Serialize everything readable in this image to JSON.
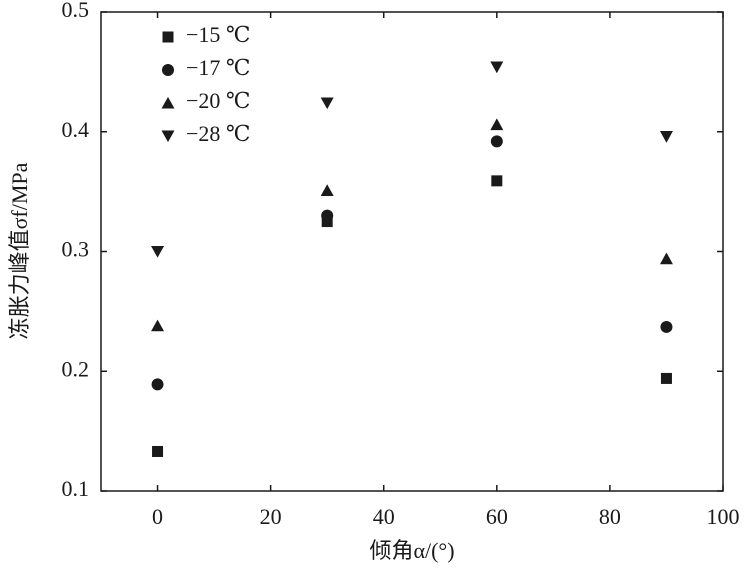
{
  "chart_data": {
    "type": "scatter",
    "x_label": "倾角α/(°)",
    "y_label": "冻胀力峰值σf/MPa",
    "x": [
      0,
      30,
      60,
      90
    ],
    "series": [
      {
        "name": "−15 ℃",
        "color": "#1a1a1a",
        "marker": "square",
        "values": [
          0.133,
          0.325,
          0.359,
          0.194
        ]
      },
      {
        "name": "−17 ℃",
        "color": "#1a1a1a",
        "marker": "circle",
        "values": [
          0.189,
          0.33,
          0.392,
          0.237
        ]
      },
      {
        "name": "−20 ℃",
        "color": "#1a1a1a",
        "marker": "triangle-up",
        "values": [
          0.238,
          0.351,
          0.406,
          0.294
        ]
      },
      {
        "name": "−28 ℃",
        "color": "#1a1a1a",
        "marker": "triangle-down",
        "values": [
          0.3,
          0.424,
          0.454,
          0.396
        ]
      }
    ],
    "xlim": [
      -10,
      100
    ],
    "xticks": [
      0,
      20,
      40,
      60,
      80,
      100
    ],
    "ylim": [
      0.1,
      0.5
    ],
    "yticks": [
      0.1,
      0.2,
      0.3,
      0.4,
      0.5
    ],
    "legend": "upper-left"
  }
}
